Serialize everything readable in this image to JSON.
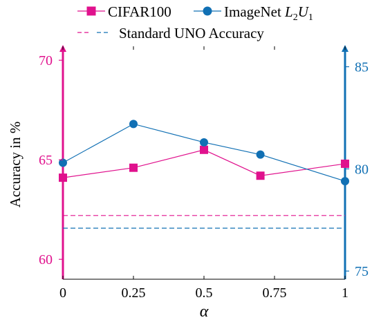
{
  "chart_data": {
    "type": "line",
    "x": [
      0,
      0.25,
      0.5,
      0.7,
      1
    ],
    "x_ticks": [
      0,
      0.25,
      0.5,
      0.75,
      1
    ],
    "x_tick_labels": [
      "0",
      "0.25",
      "0.5",
      "0.75",
      "1"
    ],
    "xlim": [
      0,
      1
    ],
    "xlabel": "α",
    "ylabel": "Accuracy in %",
    "left_axis": {
      "ylim": [
        59.0,
        70.7
      ],
      "ticks": [
        60,
        65,
        70
      ],
      "tick_labels": [
        "60",
        "65",
        "70"
      ],
      "color": "#e0118d"
    },
    "right_axis": {
      "ylim": [
        74.6,
        86.0
      ],
      "ticks": [
        75,
        80,
        85
      ],
      "tick_labels": [
        "75",
        "80",
        "85"
      ],
      "color": "#1170b4"
    },
    "series": [
      {
        "name": "CIFAR100",
        "axis": "left",
        "marker": "square",
        "color": "#e0118d",
        "values": [
          64.1,
          64.6,
          65.5,
          64.2,
          64.8
        ]
      },
      {
        "name": "ImageNet L₂U₁",
        "axis": "right",
        "marker": "circle",
        "color": "#1170b4",
        "values": [
          80.3,
          82.2,
          81.3,
          80.7,
          79.4
        ]
      }
    ],
    "reference_lines": [
      {
        "axis": "left",
        "value": 62.2,
        "color": "#e0118d"
      },
      {
        "axis": "right",
        "value": 77.1,
        "color": "#1170b4"
      }
    ],
    "legend": {
      "position": "top",
      "reference_label": "Standard UNO Accuracy"
    },
    "grid": false
  }
}
